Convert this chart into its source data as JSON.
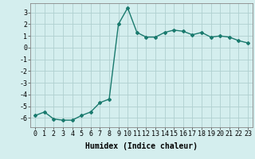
{
  "x": [
    0,
    1,
    2,
    3,
    4,
    5,
    6,
    7,
    8,
    9,
    10,
    11,
    12,
    13,
    14,
    15,
    16,
    17,
    18,
    19,
    20,
    21,
    22,
    23
  ],
  "y": [
    -5.8,
    -5.5,
    -6.1,
    -6.2,
    -6.2,
    -5.8,
    -5.5,
    -4.7,
    -4.4,
    2.0,
    3.4,
    1.3,
    0.9,
    0.9,
    1.3,
    1.5,
    1.4,
    1.1,
    1.3,
    0.9,
    1.0,
    0.9,
    0.6,
    0.4
  ],
  "line_color": "#1a7a6e",
  "marker": "D",
  "marker_size": 2.0,
  "bg_color": "#d4eeee",
  "grid_color": "#afd0d0",
  "xlabel": "Humidex (Indice chaleur)",
  "xlim": [
    -0.5,
    23.5
  ],
  "ylim": [
    -6.8,
    3.8
  ],
  "yticks": [
    -6,
    -5,
    -4,
    -3,
    -2,
    -1,
    0,
    1,
    2,
    3
  ],
  "xtick_labels": [
    "0",
    "1",
    "2",
    "3",
    "4",
    "5",
    "6",
    "7",
    "8",
    "9",
    "10",
    "11",
    "12",
    "13",
    "14",
    "15",
    "16",
    "17",
    "18",
    "19",
    "20",
    "21",
    "22",
    "23"
  ],
  "xlabel_fontsize": 7,
  "tick_fontsize": 6,
  "line_width": 1.0
}
